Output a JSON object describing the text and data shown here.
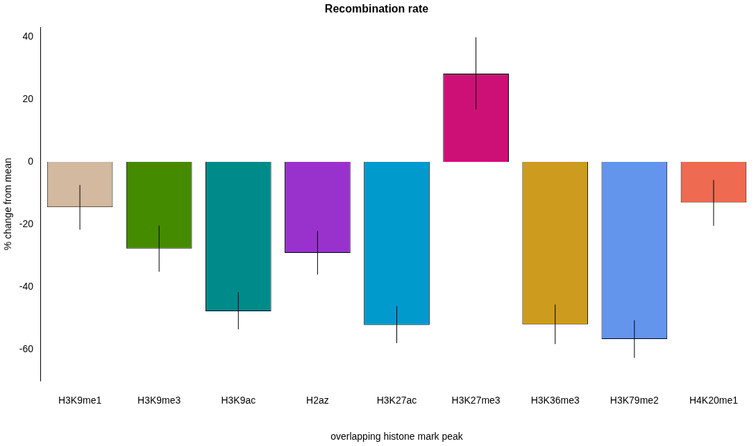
{
  "chart_data": {
    "type": "bar",
    "title": "Recombination rate",
    "xlabel": "overlapping histone mark peak",
    "ylabel": "% change from mean",
    "categories": [
      "H3K9me1",
      "H3K9me3",
      "H3K9ac",
      "H2az",
      "H3K27ac",
      "H3K27me3",
      "H3K36me3",
      "H3K79me2",
      "H4K20me1"
    ],
    "values": [
      -14.5,
      -27.7,
      -47.7,
      -29.1,
      -52.1,
      28.2,
      -51.9,
      -56.6,
      -13.0
    ],
    "colors": [
      "#d2b99f",
      "#458b00",
      "#008b8b",
      "#9932cc",
      "#009acd",
      "#cd1076",
      "#cd9b1d",
      "#6495ed",
      "#ee6a50"
    ],
    "errors": [
      [
        -21.7,
        -7.4
      ],
      [
        -35.1,
        -20.4
      ],
      [
        -53.5,
        -41.6
      ],
      [
        -36.0,
        -22.1
      ],
      [
        -57.9,
        -46.1
      ],
      [
        16.8,
        39.8
      ],
      [
        -58.2,
        -45.6
      ],
      [
        -62.6,
        -50.6
      ],
      [
        -20.4,
        -5.8
      ]
    ],
    "ylim": [
      -70,
      43
    ],
    "yticks": [
      -60,
      -40,
      -20,
      0,
      20,
      40
    ],
    "grid": false,
    "legend": false
  }
}
